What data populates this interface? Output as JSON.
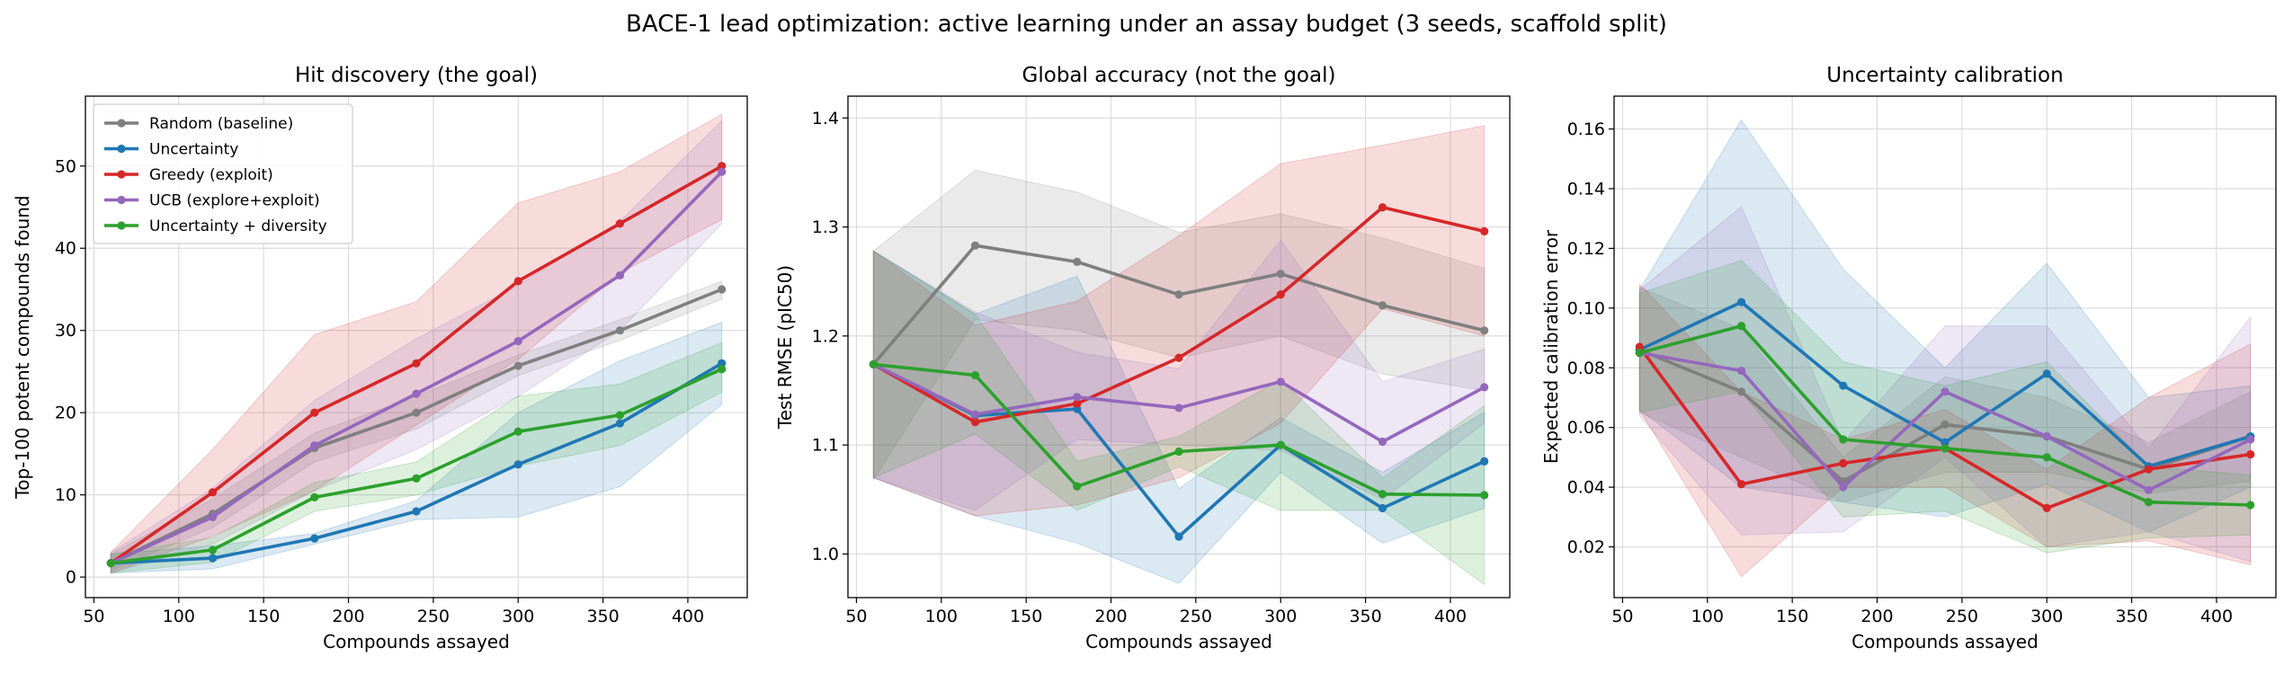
{
  "suptitle": "BACE-1 lead optimization: active learning under an assay budget (3 seeds, scaffold split)",
  "colors": {
    "Random (baseline)": "#7f7f7f",
    "Uncertainty": "#1f77b4",
    "Greedy (exploit)": "#d62728",
    "UCB (explore+exploit)": "#9467bd",
    "Uncertainty + diversity": "#2ca02c"
  },
  "chart_data": [
    {
      "type": "line",
      "title": "Hit discovery (the goal)",
      "xlabel": "Compounds assayed",
      "ylabel": "Top-100 potent compounds found",
      "x": [
        60,
        120,
        180,
        240,
        300,
        360,
        420
      ],
      "xlim": [
        45,
        435
      ],
      "ylim": [
        -2.5,
        58.5
      ],
      "xticks": [
        50,
        100,
        150,
        200,
        250,
        300,
        350,
        400
      ],
      "yticks": [
        0,
        10,
        20,
        30,
        40,
        50
      ],
      "grid": true,
      "legend": "upper left",
      "series": [
        {
          "name": "Random (baseline)",
          "values": [
            1.7,
            7.7,
            15.7,
            20.0,
            25.7,
            30.0,
            35.0
          ],
          "lower": [
            0.8,
            6.0,
            14.0,
            18.0,
            24.5,
            28.8,
            33.8
          ],
          "upper": [
            2.8,
            9.5,
            17.5,
            22.0,
            27.0,
            31.3,
            36.0
          ]
        },
        {
          "name": "Uncertainty",
          "values": [
            1.7,
            2.3,
            4.7,
            8.0,
            13.7,
            18.7,
            26.0
          ],
          "lower": [
            0.5,
            1.0,
            4.0,
            7.0,
            7.3,
            11.0,
            21.0
          ],
          "upper": [
            2.8,
            3.8,
            5.3,
            9.3,
            20.0,
            26.3,
            31.0
          ]
        },
        {
          "name": "Greedy (exploit)",
          "values": [
            1.7,
            10.3,
            20.0,
            26.0,
            36.0,
            43.0,
            50.0
          ],
          "lower": [
            0.5,
            5.0,
            10.5,
            18.5,
            26.5,
            37.0,
            43.5
          ],
          "upper": [
            3.0,
            15.5,
            29.5,
            33.5,
            45.5,
            49.3,
            56.3
          ]
        },
        {
          "name": "UCB (explore+exploit)",
          "values": [
            1.7,
            7.3,
            16.0,
            22.3,
            28.7,
            36.7,
            49.3
          ],
          "lower": [
            0.5,
            4.0,
            10.5,
            15.5,
            22.0,
            30.0,
            43.0
          ],
          "upper": [
            3.0,
            10.8,
            21.5,
            29.0,
            35.5,
            43.3,
            55.5
          ]
        },
        {
          "name": "Uncertainty + diversity",
          "values": [
            1.7,
            3.3,
            9.7,
            12.0,
            17.7,
            19.7,
            25.3
          ],
          "lower": [
            0.5,
            1.8,
            8.0,
            10.0,
            13.5,
            16.0,
            22.5
          ],
          "upper": [
            2.8,
            4.8,
            11.5,
            14.0,
            22.0,
            23.5,
            28.5
          ]
        }
      ]
    },
    {
      "type": "line",
      "title": "Global accuracy (not the goal)",
      "xlabel": "Compounds assayed",
      "ylabel": "Test RMSE (pIC50)",
      "x": [
        60,
        120,
        180,
        240,
        300,
        360,
        420
      ],
      "xlim": [
        45,
        435
      ],
      "ylim": [
        0.96,
        1.42
      ],
      "xticks": [
        50,
        100,
        150,
        200,
        250,
        300,
        350,
        400
      ],
      "yticks": [
        1.0,
        1.1,
        1.2,
        1.3,
        1.4
      ],
      "ytickfmt": 1,
      "grid": true,
      "series": [
        {
          "name": "Random (baseline)",
          "values": [
            1.174,
            1.283,
            1.268,
            1.238,
            1.257,
            1.228,
            1.205
          ],
          "lower": [
            1.068,
            1.215,
            1.205,
            1.18,
            1.2,
            1.165,
            1.15
          ],
          "upper": [
            1.278,
            1.352,
            1.332,
            1.295,
            1.312,
            1.29,
            1.262
          ]
        },
        {
          "name": "Uncertainty",
          "values": [
            1.174,
            1.127,
            1.133,
            1.016,
            1.1,
            1.042,
            1.085
          ],
          "lower": [
            1.07,
            1.035,
            1.01,
            0.973,
            1.075,
            1.01,
            1.042
          ],
          "upper": [
            1.278,
            1.22,
            1.255,
            1.06,
            1.125,
            1.075,
            1.13
          ]
        },
        {
          "name": "Greedy (exploit)",
          "values": [
            1.174,
            1.121,
            1.138,
            1.18,
            1.238,
            1.318,
            1.296
          ],
          "lower": [
            1.07,
            1.035,
            1.045,
            1.07,
            1.12,
            1.225,
            1.2
          ],
          "upper": [
            1.278,
            1.21,
            1.232,
            1.292,
            1.358,
            1.375,
            1.393
          ]
        },
        {
          "name": "UCB (explore+exploit)",
          "values": [
            1.174,
            1.128,
            1.144,
            1.134,
            1.158,
            1.103,
            1.153
          ],
          "lower": [
            1.07,
            1.04,
            1.105,
            1.1,
            1.095,
            1.05,
            1.12
          ],
          "upper": [
            1.278,
            1.222,
            1.185,
            1.17,
            1.288,
            1.158,
            1.188
          ]
        },
        {
          "name": "Uncertainty + diversity",
          "values": [
            1.174,
            1.164,
            1.062,
            1.094,
            1.1,
            1.055,
            1.054
          ],
          "lower": [
            1.07,
            1.11,
            1.04,
            1.08,
            1.04,
            1.04,
            0.972
          ],
          "upper": [
            1.278,
            1.22,
            1.085,
            1.108,
            1.16,
            1.07,
            1.136
          ]
        }
      ]
    },
    {
      "type": "line",
      "title": "Uncertainty calibration",
      "xlabel": "Compounds assayed",
      "ylabel": "Expected calibration error",
      "x": [
        60,
        120,
        180,
        240,
        300,
        360,
        420
      ],
      "xlim": [
        45,
        435
      ],
      "ylim": [
        0.003,
        0.171
      ],
      "xticks": [
        50,
        100,
        150,
        200,
        250,
        300,
        350,
        400
      ],
      "yticks": [
        0.02,
        0.04,
        0.06,
        0.08,
        0.1,
        0.12,
        0.14,
        0.16
      ],
      "ytickfmt": 2,
      "grid": true,
      "series": [
        {
          "name": "Random (baseline)",
          "values": [
            0.086,
            0.072,
            0.042,
            0.061,
            0.057,
            0.046,
            0.057
          ],
          "lower": [
            0.065,
            0.05,
            0.035,
            0.045,
            0.045,
            0.038,
            0.042
          ],
          "upper": [
            0.107,
            0.093,
            0.05,
            0.077,
            0.07,
            0.055,
            0.072
          ]
        },
        {
          "name": "Uncertainty",
          "values": [
            0.086,
            0.102,
            0.074,
            0.055,
            0.078,
            0.047,
            0.057
          ],
          "lower": [
            0.066,
            0.04,
            0.035,
            0.03,
            0.041,
            0.025,
            0.04
          ],
          "upper": [
            0.106,
            0.163,
            0.113,
            0.08,
            0.115,
            0.07,
            0.074
          ]
        },
        {
          "name": "Greedy (exploit)",
          "values": [
            0.087,
            0.041,
            0.048,
            0.053,
            0.033,
            0.046,
            0.051
          ],
          "lower": [
            0.066,
            0.01,
            0.04,
            0.04,
            0.02,
            0.022,
            0.014
          ],
          "upper": [
            0.108,
            0.072,
            0.056,
            0.066,
            0.046,
            0.07,
            0.088
          ]
        },
        {
          "name": "UCB (explore+exploit)",
          "values": [
            0.085,
            0.079,
            0.04,
            0.072,
            0.057,
            0.039,
            0.056
          ],
          "lower": [
            0.064,
            0.024,
            0.025,
            0.05,
            0.02,
            0.025,
            0.015
          ],
          "upper": [
            0.106,
            0.134,
            0.055,
            0.094,
            0.094,
            0.053,
            0.097
          ]
        },
        {
          "name": "Uncertainty + diversity",
          "values": [
            0.085,
            0.094,
            0.056,
            0.053,
            0.05,
            0.035,
            0.034
          ],
          "lower": [
            0.065,
            0.072,
            0.03,
            0.032,
            0.018,
            0.023,
            0.024
          ],
          "upper": [
            0.105,
            0.116,
            0.082,
            0.074,
            0.082,
            0.047,
            0.044
          ]
        }
      ]
    }
  ]
}
